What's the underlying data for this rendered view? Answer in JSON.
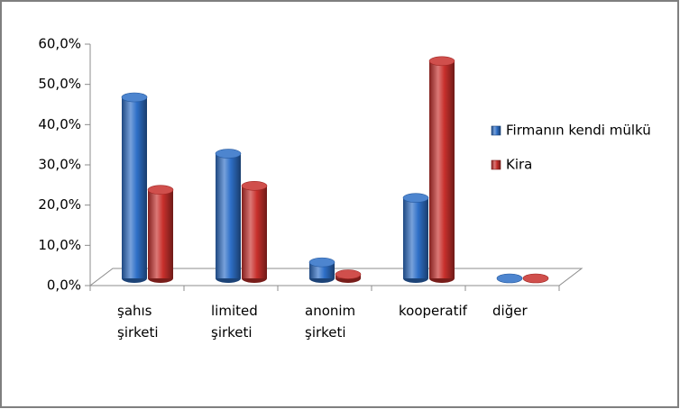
{
  "chart_data": {
    "type": "bar3d",
    "categories": [
      "şahıs şirketi",
      "limited şirketi",
      "anonim şirketi",
      "kooperatif",
      "diğer"
    ],
    "series": [
      {
        "name": "Firmanın kendi mülkü",
        "color": "#2e6fc7",
        "values": [
          45,
          31,
          4,
          20,
          0
        ]
      },
      {
        "name": "Kira",
        "color": "#c8302c",
        "values": [
          22,
          23,
          1,
          54,
          0
        ]
      }
    ],
    "ylim": [
      0,
      60
    ],
    "yticks": [
      {
        "value": 0,
        "label": "0,0%"
      },
      {
        "value": 10,
        "label": "10,0%"
      },
      {
        "value": 20,
        "label": "20,0%"
      },
      {
        "value": 30,
        "label": "30,0%"
      },
      {
        "value": 40,
        "label": "40,0%"
      },
      {
        "value": 50,
        "label": "50,0%"
      },
      {
        "value": 60,
        "label": "60,0%"
      }
    ],
    "legend": "right"
  }
}
